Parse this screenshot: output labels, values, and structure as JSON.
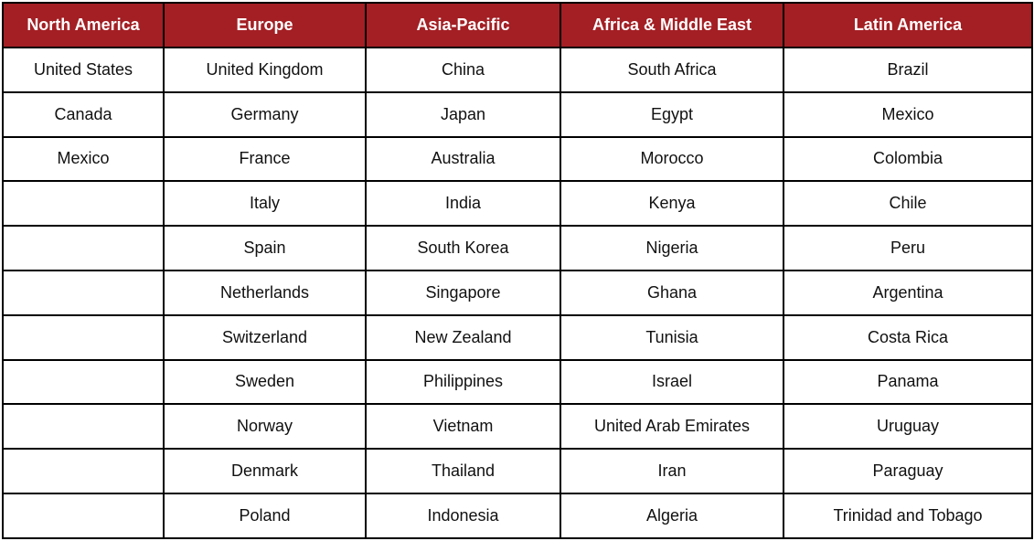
{
  "table": {
    "columns": [
      {
        "header": "North America",
        "items": [
          "United States",
          "Canada",
          "Mexico"
        ]
      },
      {
        "header": "Europe",
        "items": [
          "United Kingdom",
          "Germany",
          "France",
          "Italy",
          "Spain",
          "Netherlands",
          "Switzerland",
          "Sweden",
          "Norway",
          "Denmark",
          "Poland"
        ]
      },
      {
        "header": "Asia-Pacific",
        "items": [
          "China",
          "Japan",
          "Australia",
          "India",
          "South Korea",
          "Singapore",
          "New Zealand",
          "Philippines",
          "Vietnam",
          "Thailand",
          "Indonesia"
        ]
      },
      {
        "header": "Africa & Middle East",
        "items": [
          "South Africa",
          "Egypt",
          "Morocco",
          "Kenya",
          "Nigeria",
          "Ghana",
          "Tunisia",
          "Israel",
          "United Arab Emirates",
          "Iran",
          "Algeria"
        ]
      },
      {
        "header": "Latin America",
        "items": [
          "Brazil",
          "Mexico",
          "Colombia",
          "Chile",
          "Peru",
          "Argentina",
          "Costa Rica",
          "Panama",
          "Uruguay",
          "Paraguay",
          "Trinidad and Tobago"
        ]
      }
    ]
  }
}
